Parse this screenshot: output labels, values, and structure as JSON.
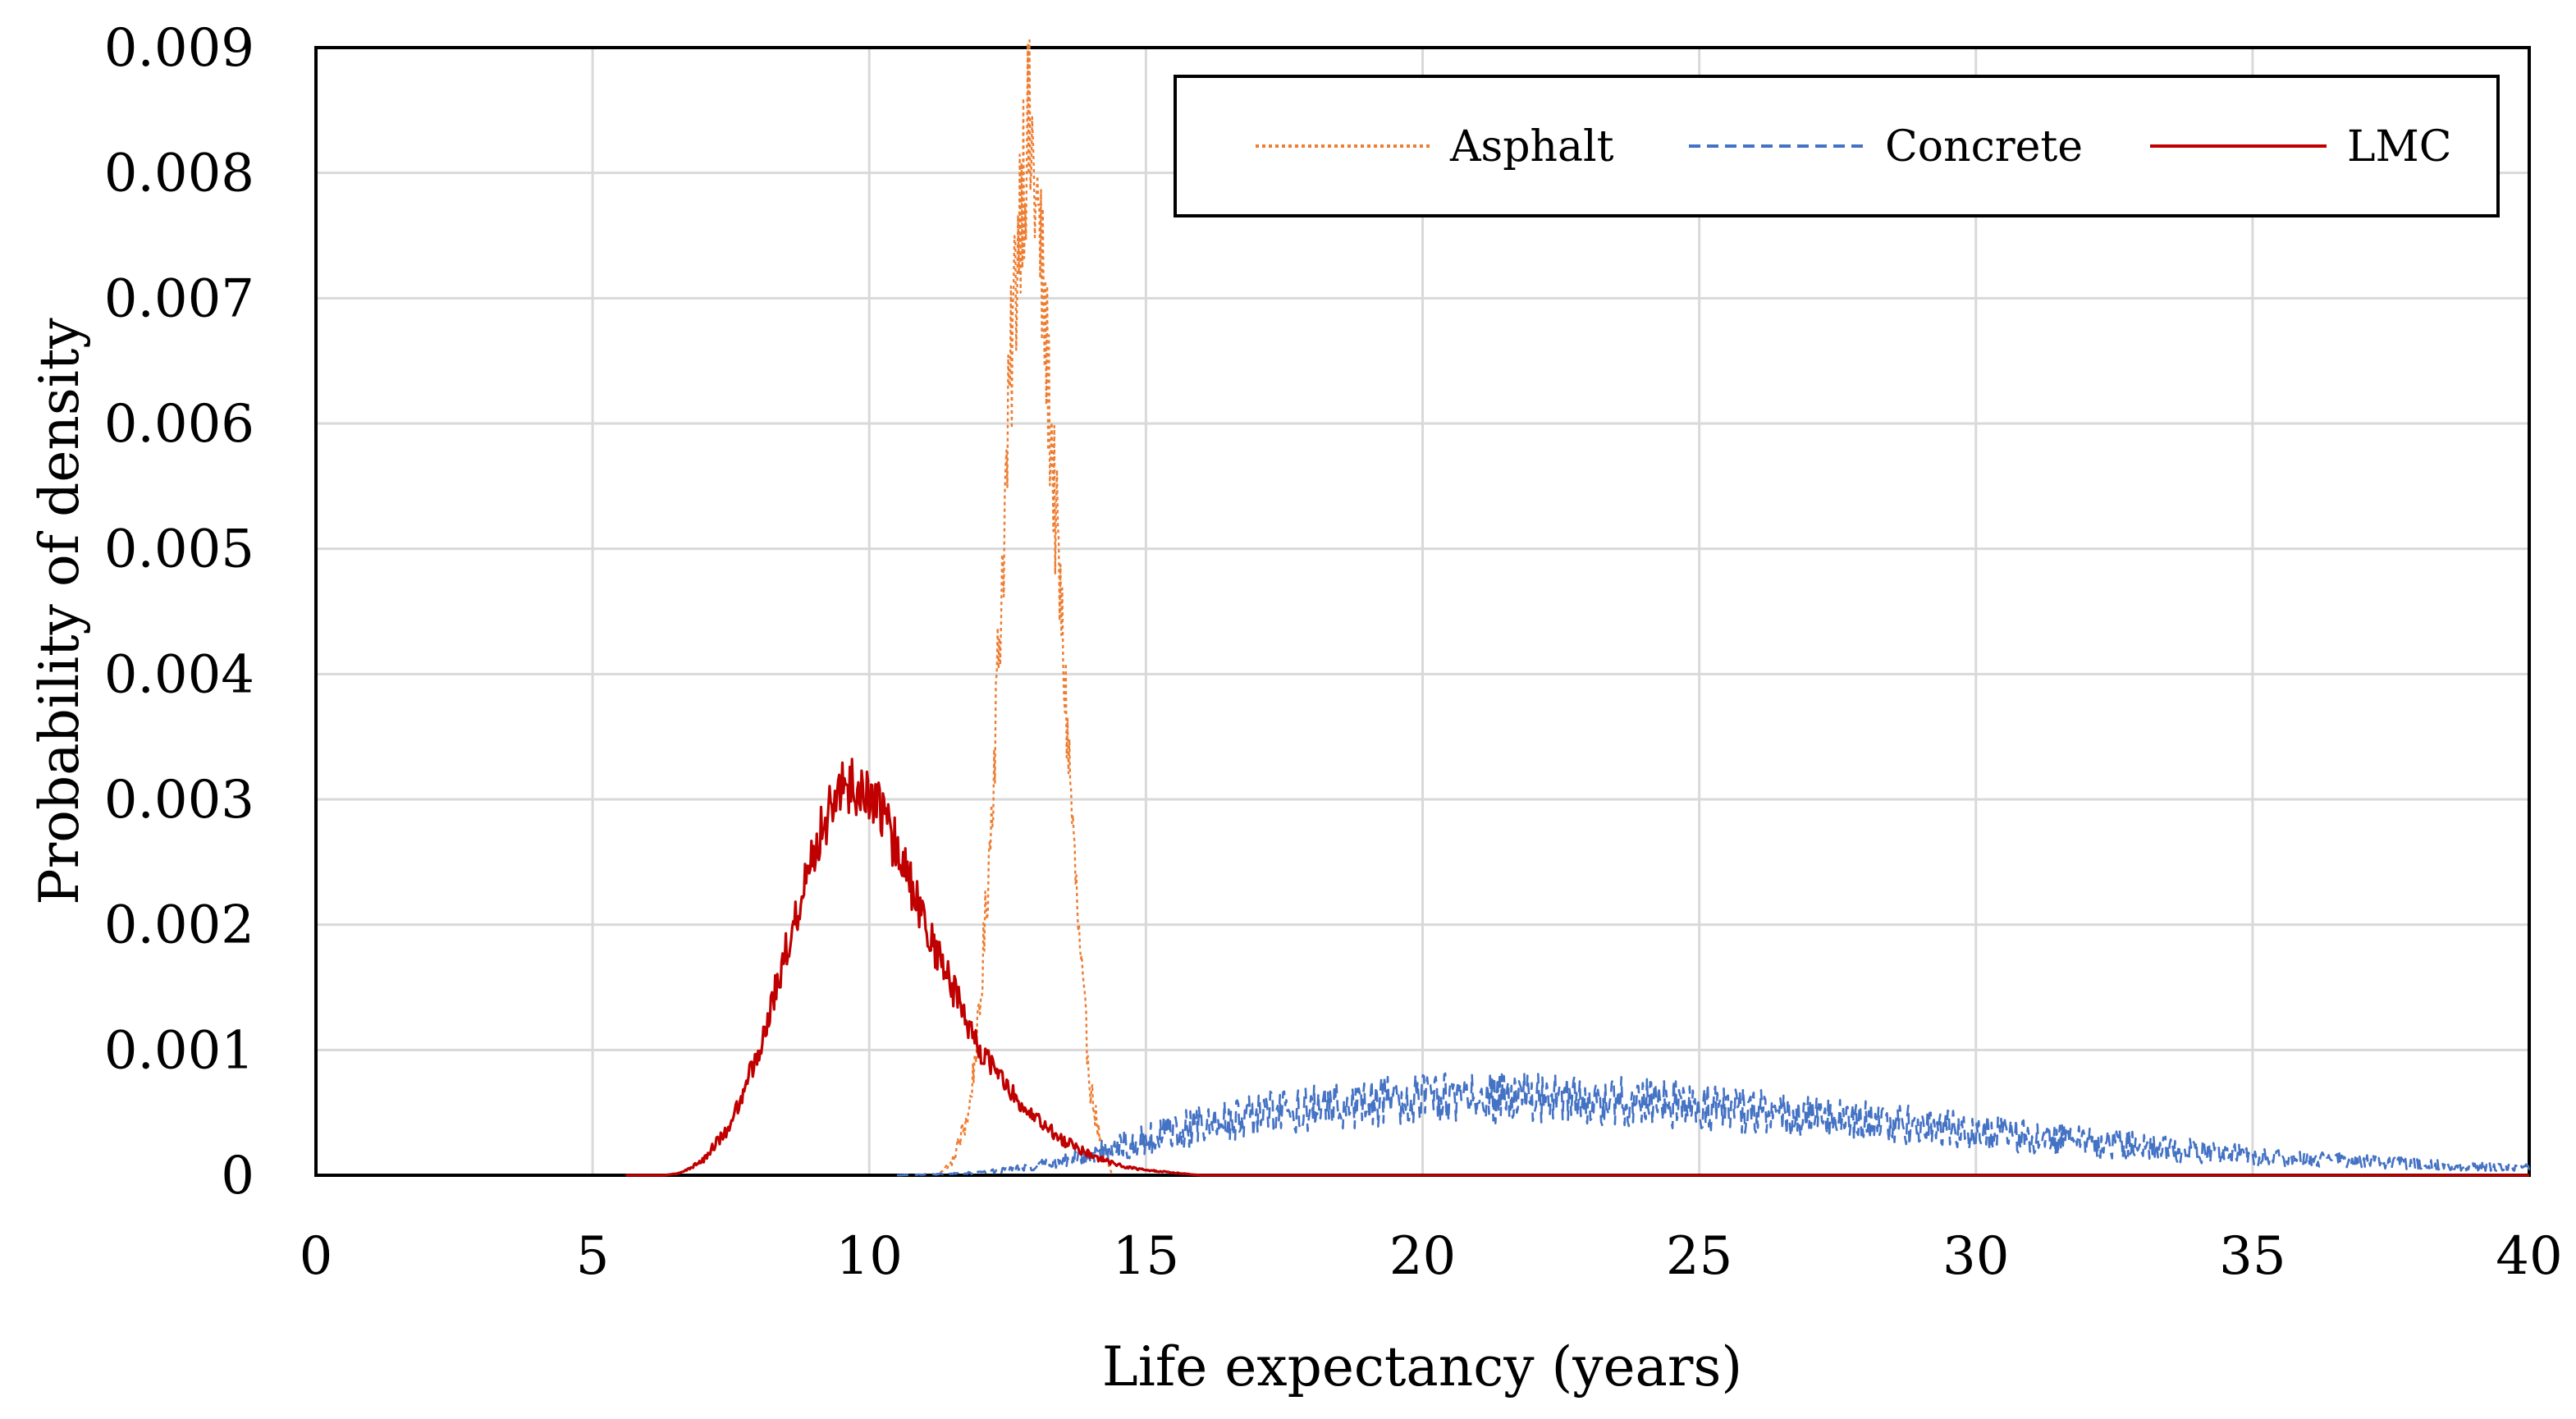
{
  "chart_data": {
    "type": "line",
    "title": "",
    "xlabel": "Life expectancy (years)",
    "ylabel": "Probability of density",
    "xlim": [
      0,
      40
    ],
    "ylim": [
      0,
      0.009
    ],
    "x_ticks": [
      "0",
      "5",
      "10",
      "15",
      "20",
      "25",
      "30",
      "35",
      "40"
    ],
    "y_ticks": [
      "0",
      "0.001",
      "0.002",
      "0.003",
      "0.004",
      "0.005",
      "0.006",
      "0.007",
      "0.008",
      "0.009"
    ],
    "grid": true,
    "legend_position": "top-right",
    "series": [
      {
        "name": "Asphalt",
        "color": "#ed7d31",
        "style": "dotted",
        "x": [
          11.2,
          11.5,
          11.8,
          12.0,
          12.2,
          12.4,
          12.6,
          12.75,
          12.85,
          12.95,
          13.05,
          13.2,
          13.4,
          13.6,
          13.8,
          14.0,
          14.2,
          14.4
        ],
        "y": [
          0.0,
          0.0001,
          0.0005,
          0.0013,
          0.0028,
          0.0048,
          0.0068,
          0.008,
          0.0083,
          0.0081,
          0.0076,
          0.0066,
          0.005,
          0.0034,
          0.0018,
          0.0007,
          0.0002,
          0.0
        ]
      },
      {
        "name": "Concrete",
        "color": "#4472c4",
        "style": "dashed",
        "x": [
          10.5,
          12,
          13,
          14,
          15,
          16,
          17,
          18,
          19,
          20,
          21,
          22,
          23,
          24,
          25,
          26,
          27,
          28,
          29,
          30,
          31,
          32,
          33,
          34,
          35,
          36,
          37,
          38,
          39,
          40
        ],
        "y": [
          0.0,
          2e-05,
          7e-05,
          0.00017,
          0.0003,
          0.0004,
          0.00048,
          0.00054,
          0.00058,
          0.00061,
          0.00062,
          0.00061,
          0.0006,
          0.00058,
          0.00055,
          0.00051,
          0.00047,
          0.00043,
          0.00039,
          0.00035,
          0.00031,
          0.00027,
          0.00023,
          0.00019,
          0.00016,
          0.00013,
          0.00011,
          9e-05,
          7e-05,
          6e-05
        ]
      },
      {
        "name": "LMC",
        "color": "#c00000",
        "style": "solid",
        "x": [
          5.6,
          6.3,
          6.6,
          7.0,
          7.5,
          8.0,
          8.5,
          9.0,
          9.5,
          9.8,
          10.2,
          10.6,
          11.0,
          11.5,
          12.0,
          12.5,
          13.0,
          13.5,
          14.0,
          14.5,
          15.0,
          15.5,
          16.0,
          17.0,
          40.0
        ],
        "y": [
          0.0,
          0.0,
          2e-05,
          0.00012,
          0.0004,
          0.001,
          0.0018,
          0.0026,
          0.0031,
          0.0031,
          0.0029,
          0.0025,
          0.002,
          0.0015,
          0.001,
          0.0007,
          0.00045,
          0.00028,
          0.00016,
          8e-05,
          4e-05,
          2e-05,
          0.0,
          0.0,
          0.0
        ]
      }
    ]
  }
}
